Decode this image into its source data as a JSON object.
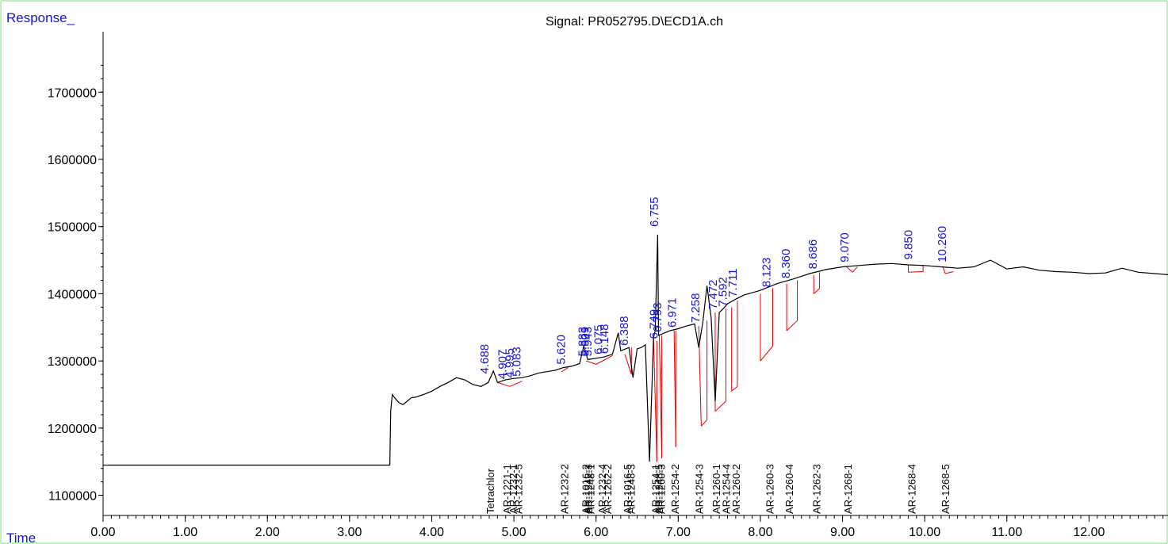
{
  "chart_data": {
    "type": "line",
    "title": "Signal: PR052795.D\\ECD1A.ch",
    "ylabel": "Response_",
    "xlabel": "Time",
    "xlim": [
      0,
      13.0
    ],
    "ylim": [
      1070000,
      1790000
    ],
    "x_ticks": [
      "0.00",
      "1.00",
      "2.00",
      "3.00",
      "4.00",
      "5.00",
      "6.00",
      "7.00",
      "8.00",
      "9.00",
      "10.00",
      "11.00",
      "12.00"
    ],
    "y_ticks": [
      "1100000",
      "1200000",
      "1300000",
      "1400000",
      "1500000",
      "1600000",
      "1700000"
    ],
    "series": [
      {
        "x": [
          0.0,
          3.49,
          3.5,
          3.52,
          3.55,
          3.6,
          3.65,
          3.7,
          3.75,
          3.8,
          3.9,
          4.0,
          4.1,
          4.2,
          4.3,
          4.4,
          4.5,
          4.6,
          4.688,
          4.75,
          4.8,
          4.9,
          5.0,
          5.1,
          5.2,
          5.3,
          5.4,
          5.5,
          5.6,
          5.7,
          5.8,
          5.85,
          5.9,
          6.0,
          6.1,
          6.2,
          6.27,
          6.3,
          6.4,
          6.45,
          6.5,
          6.55,
          6.6,
          6.65,
          6.7,
          6.72,
          6.75,
          6.76,
          6.8,
          6.9,
          7.0,
          7.1,
          7.2,
          7.25,
          7.3,
          7.35,
          7.4,
          7.45,
          7.5,
          7.55,
          7.6,
          7.7,
          7.8,
          8.0,
          8.2,
          8.4,
          8.6,
          8.8,
          9.0,
          9.2,
          9.4,
          9.6,
          9.8,
          10.0,
          10.2,
          10.4,
          10.6,
          10.8,
          11.0,
          11.2,
          11.4,
          11.6,
          11.8,
          12.0,
          12.2,
          12.4,
          12.6,
          12.8,
          13.0
        ],
        "y": [
          1145000,
          1145000,
          1225000,
          1250000,
          1245000,
          1238000,
          1235000,
          1240000,
          1245000,
          1246000,
          1250000,
          1255000,
          1262000,
          1268000,
          1275000,
          1272000,
          1265000,
          1262000,
          1268000,
          1285000,
          1268000,
          1272000,
          1274000,
          1275000,
          1278000,
          1282000,
          1284000,
          1286000,
          1290000,
          1292000,
          1296000,
          1322000,
          1302000,
          1304000,
          1306000,
          1310000,
          1342000,
          1315000,
          1320000,
          1275000,
          1318000,
          1320000,
          1324000,
          1150000,
          1335000,
          1345000,
          1488000,
          1338000,
          1340000,
          1345000,
          1348000,
          1352000,
          1355000,
          1320000,
          1358000,
          1412000,
          1365000,
          1240000,
          1372000,
          1378000,
          1385000,
          1392000,
          1398000,
          1405000,
          1415000,
          1422000,
          1430000,
          1436000,
          1440000,
          1442000,
          1444000,
          1445000,
          1443000,
          1442000,
          1440000,
          1438000,
          1440000,
          1450000,
          1437000,
          1440000,
          1435000,
          1433000,
          1432000,
          1430000,
          1431000,
          1438000,
          1432000,
          1430000,
          1428000
        ]
      }
    ],
    "peak_labels": [
      {
        "x": 4.688,
        "y": 1276000,
        "text": "4.688"
      },
      {
        "x": 4.907,
        "y": 1268000,
        "text": "4.907"
      },
      {
        "x": 4.995,
        "y": 1270000,
        "text": "4.995"
      },
      {
        "x": 5.083,
        "y": 1272000,
        "text": "5.083"
      },
      {
        "x": 5.62,
        "y": 1290000,
        "text": "5.620"
      },
      {
        "x": 5.883,
        "y": 1302000,
        "text": "5.883"
      },
      {
        "x": 5.909,
        "y": 1302000,
        "text": "5.909"
      },
      {
        "x": 5.943,
        "y": 1302000,
        "text": "5.943"
      },
      {
        "x": 6.075,
        "y": 1305000,
        "text": "6.075"
      },
      {
        "x": 6.148,
        "y": 1306000,
        "text": "6.148"
      },
      {
        "x": 6.388,
        "y": 1318000,
        "text": "6.388"
      },
      {
        "x": 6.749,
        "y": 1328000,
        "text": "6.749"
      },
      {
        "x": 6.755,
        "y": 1495000,
        "text": "6.755"
      },
      {
        "x": 6.793,
        "y": 1338000,
        "text": "6.793"
      },
      {
        "x": 6.971,
        "y": 1345000,
        "text": "6.971"
      },
      {
        "x": 7.258,
        "y": 1352000,
        "text": "7.258"
      },
      {
        "x": 7.472,
        "y": 1372000,
        "text": "7.472"
      },
      {
        "x": 7.592,
        "y": 1376000,
        "text": "7.592"
      },
      {
        "x": 7.711,
        "y": 1390000,
        "text": "7.711"
      },
      {
        "x": 8.123,
        "y": 1405000,
        "text": "8.123"
      },
      {
        "x": 8.36,
        "y": 1418000,
        "text": "8.360"
      },
      {
        "x": 8.686,
        "y": 1432000,
        "text": "8.686"
      },
      {
        "x": 9.07,
        "y": 1442000,
        "text": "9.070"
      },
      {
        "x": 9.85,
        "y": 1446000,
        "text": "9.850"
      },
      {
        "x": 10.26,
        "y": 1442000,
        "text": "10.260"
      }
    ],
    "baselines": [
      [
        4.8,
        1268000,
        4.95,
        1262000
      ],
      [
        4.95,
        1262000,
        5.1,
        1270000
      ],
      [
        5.58,
        1284000,
        5.66,
        1290000
      ],
      [
        5.88,
        1300000,
        6.0,
        1295000
      ],
      [
        6.0,
        1295000,
        6.2,
        1308000
      ],
      [
        6.35,
        1310000,
        6.43,
        1280000
      ],
      [
        6.43,
        1280000,
        6.43,
        1320000
      ],
      [
        6.7,
        1335000,
        6.74,
        1150000
      ],
      [
        6.74,
        1150000,
        6.74,
        1330000
      ],
      [
        6.77,
        1338000,
        6.8,
        1155000
      ],
      [
        6.8,
        1155000,
        6.8,
        1338000
      ],
      [
        6.95,
        1345000,
        6.97,
        1172000
      ],
      [
        6.97,
        1172000,
        6.97,
        1345000
      ],
      [
        7.25,
        1352000,
        7.28,
        1203000
      ],
      [
        7.28,
        1203000,
        7.35,
        1212000
      ],
      [
        7.35,
        1212000,
        7.35,
        1360000
      ],
      [
        7.45,
        1372000,
        7.45,
        1225000
      ],
      [
        7.45,
        1225000,
        7.58,
        1240000
      ],
      [
        7.58,
        1240000,
        7.58,
        1378000
      ],
      [
        7.65,
        1380000,
        7.65,
        1255000
      ],
      [
        7.65,
        1255000,
        7.72,
        1262000
      ],
      [
        7.72,
        1262000,
        7.72,
        1390000
      ],
      [
        8.0,
        1400000,
        8.0,
        1300000
      ],
      [
        8.0,
        1300000,
        8.15,
        1322000
      ],
      [
        8.15,
        1322000,
        8.15,
        1408000
      ],
      [
        8.32,
        1415000,
        8.32,
        1345000
      ],
      [
        8.32,
        1345000,
        8.45,
        1360000
      ],
      [
        8.45,
        1360000,
        8.45,
        1420000
      ],
      [
        8.65,
        1428000,
        8.65,
        1400000
      ],
      [
        8.65,
        1400000,
        8.72,
        1408000
      ],
      [
        8.72,
        1408000,
        8.72,
        1432000
      ],
      [
        9.05,
        1440000,
        9.12,
        1432000
      ],
      [
        9.12,
        1432000,
        9.18,
        1440000
      ],
      [
        9.8,
        1443000,
        9.8,
        1432000
      ],
      [
        9.8,
        1432000,
        9.98,
        1433000
      ],
      [
        9.98,
        1433000,
        9.98,
        1442000
      ],
      [
        10.22,
        1441000,
        10.25,
        1430000
      ],
      [
        10.25,
        1430000,
        10.35,
        1433000
      ]
    ],
    "compound_labels": [
      {
        "x": 4.72,
        "texts": [
          "Tetrachlor"
        ]
      },
      {
        "x": 4.92,
        "texts": [
          "AR-1221-1"
        ]
      },
      {
        "x": 5.0,
        "texts": [
          "AR-1232-1"
        ]
      },
      {
        "x": 5.06,
        "texts": [
          "AR-1232-5"
        ]
      },
      {
        "x": 5.62,
        "texts": [
          "AR-1232-2"
        ]
      },
      {
        "x": 5.88,
        "texts": [
          "AR-1016-2"
        ]
      },
      {
        "x": 5.91,
        "texts": [
          "AR-1242-3"
        ]
      },
      {
        "x": 5.94,
        "texts": [
          "AR-1248-1"
        ]
      },
      {
        "x": 6.08,
        "texts": [
          "AR-1232-4"
        ]
      },
      {
        "x": 6.15,
        "texts": [
          "AR-1262-2"
        ]
      },
      {
        "x": 6.39,
        "texts": [
          "AR-1016-5"
        ]
      },
      {
        "x": 6.43,
        "texts": [
          "AR-1248-3"
        ]
      },
      {
        "x": 6.73,
        "texts": [
          "AR-1254-1"
        ]
      },
      {
        "x": 6.77,
        "texts": [
          "AR-1248-5"
        ]
      },
      {
        "x": 6.8,
        "texts": [
          "AR-1260-3"
        ]
      },
      {
        "x": 6.97,
        "texts": [
          "AR-1254-2"
        ]
      },
      {
        "x": 7.26,
        "texts": [
          "AR-1254-3"
        ]
      },
      {
        "x": 7.47,
        "texts": [
          "AR-1260-1"
        ]
      },
      {
        "x": 7.59,
        "texts": [
          "AR-1254-4"
        ]
      },
      {
        "x": 7.71,
        "texts": [
          "AR-1260-2"
        ]
      },
      {
        "x": 8.12,
        "texts": [
          "AR-1260-3"
        ]
      },
      {
        "x": 8.36,
        "texts": [
          "AR-1260-4"
        ]
      },
      {
        "x": 8.69,
        "texts": [
          "AR-1262-3"
        ]
      },
      {
        "x": 9.07,
        "texts": [
          "AR-1268-1"
        ]
      },
      {
        "x": 9.85,
        "texts": [
          "AR-1268-4"
        ]
      },
      {
        "x": 10.26,
        "texts": [
          "AR-1268-5"
        ]
      }
    ]
  }
}
